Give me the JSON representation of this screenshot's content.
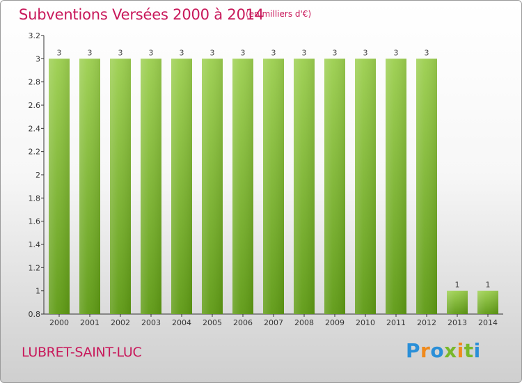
{
  "header": {
    "title": "Subventions Versées 2000 à 2014",
    "unit": "(en milliers d'€)"
  },
  "footer": {
    "commune": "LUBRET-SAINT-LUC",
    "brand": "Proxiti"
  },
  "colors": {
    "title": "#c8185a",
    "bar_top": "#9ccf4f",
    "bar_bottom": "#5e9a14",
    "brand_letters": [
      "#2a8fd8",
      "#f08a1c",
      "#2a8fd8",
      "#78b82a",
      "#f08a1c",
      "#78b82a",
      "#2a8fd8"
    ]
  },
  "chart_data": {
    "type": "bar",
    "title": "Subventions Versées 2000 à 2014",
    "subtitle": "(en milliers d'€)",
    "categories": [
      "2000",
      "2001",
      "2002",
      "2003",
      "2004",
      "2005",
      "2006",
      "2007",
      "2008",
      "2009",
      "2010",
      "2011",
      "2012",
      "2013",
      "2014"
    ],
    "values": [
      3,
      3,
      3,
      3,
      3,
      3,
      3,
      3,
      3,
      3,
      3,
      3,
      3,
      1,
      1
    ],
    "data_labels": [
      "3",
      "3",
      "3",
      "3",
      "3",
      "3",
      "3",
      "3",
      "3",
      "3",
      "3",
      "3",
      "3",
      "1",
      "1"
    ],
    "ylim": [
      0.8,
      3.2
    ],
    "yticks": [
      0.8,
      1,
      1.2,
      1.4,
      1.6,
      1.8,
      2,
      2.2,
      2.4,
      2.6,
      2.8,
      3,
      3.2
    ],
    "ytick_labels": [
      "0.8",
      "1",
      "1.2",
      "1.4",
      "1.6",
      "1.8",
      "2",
      "2.2",
      "2.4",
      "2.6",
      "2.8",
      "3",
      "3.2"
    ],
    "grid": false,
    "xlabel": "",
    "ylabel": ""
  }
}
